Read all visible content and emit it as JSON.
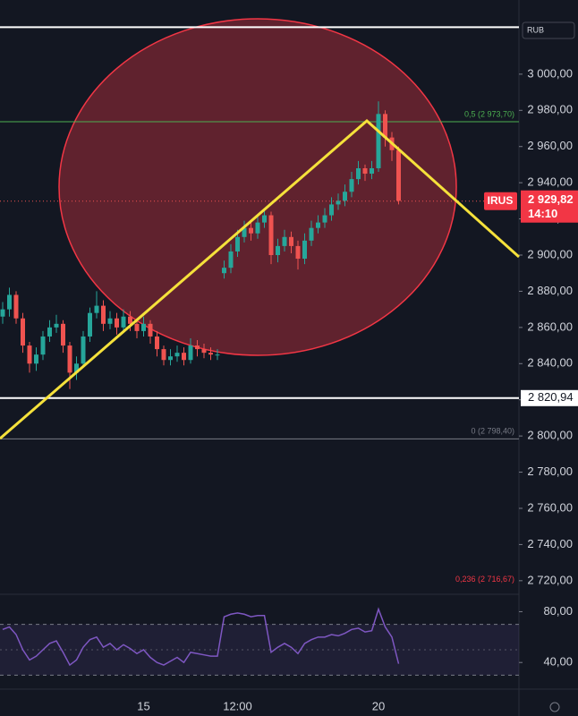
{
  "chart_data": [
    {
      "type": "candlestick",
      "currency": "RUB",
      "symbol_label": "IRUS",
      "last_price": {
        "value": 2929.82,
        "label": "2 929,82"
      },
      "countdown": "14:10",
      "up_color": "#26a69a",
      "down_color": "#ef5350",
      "categories": [
        null,
        null,
        null,
        null,
        null,
        null,
        null,
        null,
        null,
        null,
        null,
        null,
        null,
        null,
        null,
        null,
        null,
        null,
        null,
        null,
        null,
        "15",
        null,
        null,
        null,
        null,
        null,
        null,
        null,
        null,
        null,
        null,
        null,
        null,
        null,
        "12:00",
        null,
        null,
        null,
        null,
        null,
        null,
        null,
        null,
        null,
        null,
        null,
        null,
        null,
        null,
        null,
        null,
        null,
        null,
        null,
        null,
        "20",
        null,
        null,
        null
      ],
      "open": [
        2866,
        2870,
        2878,
        2865,
        2850,
        2840,
        2845,
        2855,
        2860,
        2862,
        2850,
        2835,
        2840,
        2855,
        2868,
        2872,
        2862,
        2865,
        2860,
        2866,
        2862,
        2858,
        2862,
        2855,
        2848,
        2842,
        2844,
        2846,
        2842,
        2850,
        2848,
        2846,
        2845,
        2890,
        2893,
        2902,
        2910,
        2915,
        2912,
        2918,
        2922,
        2900,
        2905,
        2910,
        2905,
        2898,
        2908,
        2915,
        2918,
        2922,
        2928,
        2930,
        2935,
        2942,
        2948,
        2945,
        2948,
        2978,
        2965,
        2958
      ],
      "high": [
        2874,
        2882,
        2880,
        2868,
        2852,
        2849,
        2858,
        2864,
        2867,
        2864,
        2852,
        2844,
        2858,
        2871,
        2880,
        2875,
        2869,
        2868,
        2870,
        2869,
        2865,
        2866,
        2864,
        2858,
        2850,
        2848,
        2850,
        2849,
        2854,
        2853,
        2851,
        2849,
        2848,
        2897,
        2906,
        2914,
        2919,
        2918,
        2922,
        2926,
        2924,
        2909,
        2914,
        2913,
        2908,
        2912,
        2919,
        2922,
        2926,
        2932,
        2934,
        2939,
        2946,
        2952,
        2950,
        2952,
        2985,
        2980,
        2968,
        2960
      ],
      "low": [
        2862,
        2866,
        2862,
        2846,
        2835,
        2836,
        2842,
        2852,
        2857,
        2846,
        2826,
        2831,
        2838,
        2852,
        2865,
        2858,
        2859,
        2856,
        2857,
        2858,
        2854,
        2855,
        2851,
        2844,
        2839,
        2839,
        2841,
        2839,
        2840,
        2844,
        2843,
        2842,
        2842,
        2887,
        2890,
        2899,
        2907,
        2908,
        2909,
        2915,
        2895,
        2896,
        2902,
        2901,
        2892,
        2895,
        2905,
        2912,
        2915,
        2919,
        2925,
        2927,
        2932,
        2939,
        2941,
        2942,
        2946,
        2960,
        2952,
        2928
      ],
      "close": [
        2870,
        2878,
        2865,
        2850,
        2840,
        2845,
        2855,
        2860,
        2862,
        2850,
        2835,
        2840,
        2855,
        2868,
        2872,
        2862,
        2865,
        2860,
        2866,
        2862,
        2858,
        2862,
        2855,
        2848,
        2842,
        2844,
        2846,
        2842,
        2850,
        2848,
        2846,
        2845,
        2845,
        2893,
        2902,
        2910,
        2915,
        2912,
        2918,
        2922,
        2900,
        2905,
        2910,
        2905,
        2898,
        2908,
        2915,
        2918,
        2922,
        2928,
        2930,
        2935,
        2942,
        2948,
        2945,
        2948,
        2978,
        2965,
        2958,
        2930
      ],
      "ylim": [
        2712,
        3041
      ],
      "yticks": [
        {
          "value": 2720,
          "label": "2 720,00"
        },
        {
          "value": 2740,
          "label": "2 740,00"
        },
        {
          "value": 2760,
          "label": "2 760,00"
        },
        {
          "value": 2780,
          "label": "2 780,00"
        },
        {
          "value": 2800,
          "label": "2 800,00"
        },
        {
          "value": 2820,
          "label": "2 820,00"
        },
        {
          "value": 2840,
          "label": "2 840,00"
        },
        {
          "value": 2860,
          "label": "2 860,00"
        },
        {
          "value": 2880,
          "label": "2 880,00"
        },
        {
          "value": 2900,
          "label": "2 900,00"
        },
        {
          "value": 2920,
          "label": "2 920,00"
        },
        {
          "value": 2940,
          "label": "2 940,00"
        },
        {
          "value": 2960,
          "label": "2 960,00"
        },
        {
          "value": 2980,
          "label": "2 980,00"
        },
        {
          "value": 3000,
          "label": "3 000,00"
        }
      ],
      "annotations": [
        {
          "price": 3026,
          "color": "#ffffff",
          "line": true
        },
        {
          "price": 2973.7,
          "label": "0,5 (2 973,70)",
          "color": "#4caf50",
          "line": true
        },
        {
          "price": 2798.4,
          "label": "0 (2 798,40)",
          "color": "#787b86",
          "line": true
        },
        {
          "price": 2716.67,
          "label": "0,236 (2 716,67)",
          "color": "#f23645",
          "line": false
        }
      ],
      "price_line": {
        "value": 2820.94,
        "label": "2 820,94",
        "color": "#ffffff"
      }
    },
    {
      "type": "line",
      "color": "#7e57c2",
      "values": [
        66,
        68,
        62,
        50,
        42,
        45,
        50,
        55,
        57,
        48,
        38,
        42,
        52,
        58,
        60,
        52,
        55,
        50,
        54,
        51,
        47,
        50,
        44,
        40,
        38,
        41,
        44,
        40,
        48,
        47,
        46,
        45,
        45,
        76,
        78,
        79,
        78,
        76,
        77,
        77,
        48,
        52,
        55,
        52,
        47,
        55,
        58,
        60,
        60,
        62,
        61,
        63,
        66,
        67,
        64,
        65,
        82,
        68,
        60,
        39
      ],
      "band": [
        30,
        70
      ],
      "midline": 50,
      "ylim": [
        19,
        93
      ],
      "yticks": [
        {
          "value": 40,
          "label": "40,00"
        },
        {
          "value": 80,
          "label": "80,00"
        }
      ]
    }
  ]
}
